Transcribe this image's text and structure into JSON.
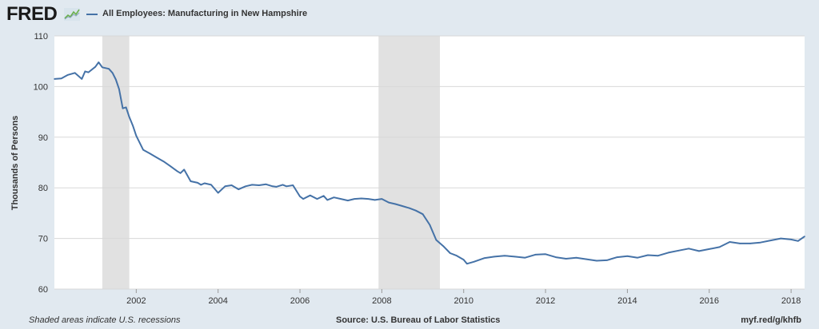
{
  "header": {
    "logo_text": "FRED",
    "legend_label": "All Employees: Manufacturing in New Hampshire",
    "series_color": "#4572a7"
  },
  "footer": {
    "note": "Shaded areas indicate U.S. recessions",
    "source": "Source: U.S. Bureau of Labor Statistics",
    "url": "myf.red/g/khfb"
  },
  "chart_data": {
    "type": "line",
    "title": "",
    "xlabel": "",
    "ylabel": "Thousands of Persons",
    "xlim": [
      2000.0,
      2018.33
    ],
    "ylim": [
      60,
      110
    ],
    "yticks": [
      60,
      70,
      80,
      90,
      100,
      110
    ],
    "xticks": [
      2002,
      2004,
      2006,
      2008,
      2010,
      2012,
      2014,
      2016,
      2018
    ],
    "grid": true,
    "recessions": [
      [
        2001.17,
        2001.83
      ],
      [
        2007.92,
        2009.42
      ]
    ],
    "series": [
      {
        "name": "All Employees: Manufacturing in New Hampshire",
        "color": "#4572a7",
        "x": [
          2000.0,
          2000.17,
          2000.33,
          2000.5,
          2000.67,
          2000.75,
          2000.83,
          2001.0,
          2001.08,
          2001.17,
          2001.33,
          2001.42,
          2001.5,
          2001.58,
          2001.67,
          2001.75,
          2001.83,
          2001.92,
          2002.0,
          2002.17,
          2002.33,
          2002.5,
          2002.67,
          2002.83,
          2003.0,
          2003.08,
          2003.17,
          2003.33,
          2003.5,
          2003.58,
          2003.67,
          2003.83,
          2004.0,
          2004.17,
          2004.33,
          2004.5,
          2004.67,
          2004.83,
          2005.0,
          2005.17,
          2005.33,
          2005.42,
          2005.5,
          2005.58,
          2005.67,
          2005.83,
          2006.0,
          2006.08,
          2006.25,
          2006.42,
          2006.58,
          2006.67,
          2006.83,
          2007.0,
          2007.17,
          2007.33,
          2007.5,
          2007.67,
          2007.83,
          2008.0,
          2008.17,
          2008.33,
          2008.5,
          2008.67,
          2008.83,
          2009.0,
          2009.17,
          2009.33,
          2009.5,
          2009.67,
          2009.83,
          2010.0,
          2010.08,
          2010.25,
          2010.5,
          2010.75,
          2011.0,
          2011.25,
          2011.5,
          2011.75,
          2012.0,
          2012.25,
          2012.5,
          2012.75,
          2013.0,
          2013.25,
          2013.5,
          2013.75,
          2014.0,
          2014.25,
          2014.5,
          2014.75,
          2015.0,
          2015.25,
          2015.5,
          2015.75,
          2016.0,
          2016.25,
          2016.5,
          2016.75,
          2017.0,
          2017.25,
          2017.5,
          2017.75,
          2018.0,
          2018.17,
          2018.33
        ],
        "y": [
          101.5,
          101.6,
          102.3,
          102.7,
          101.5,
          103.0,
          102.8,
          103.9,
          104.8,
          103.8,
          103.5,
          102.7,
          101.4,
          99.5,
          95.7,
          95.9,
          94.0,
          92.2,
          90.3,
          87.5,
          86.8,
          86.0,
          85.2,
          84.3,
          83.3,
          82.9,
          83.6,
          81.3,
          81.0,
          80.6,
          80.9,
          80.6,
          79.0,
          80.3,
          80.5,
          79.7,
          80.3,
          80.6,
          80.5,
          80.7,
          80.3,
          80.2,
          80.4,
          80.6,
          80.3,
          80.5,
          78.3,
          77.8,
          78.5,
          77.8,
          78.4,
          77.6,
          78.1,
          77.8,
          77.5,
          77.8,
          77.9,
          77.8,
          77.6,
          77.8,
          77.1,
          76.8,
          76.4,
          76.0,
          75.5,
          74.8,
          72.7,
          69.7,
          68.5,
          67.1,
          66.6,
          65.8,
          65.0,
          65.4,
          66.1,
          66.4,
          66.6,
          66.4,
          66.2,
          66.8,
          66.9,
          66.3,
          66.0,
          66.2,
          65.9,
          65.6,
          65.7,
          66.3,
          66.5,
          66.2,
          66.7,
          66.6,
          67.2,
          67.6,
          68.0,
          67.5,
          67.9,
          68.3,
          69.3,
          69.0,
          69.0,
          69.2,
          69.6,
          70.0,
          69.8,
          69.5,
          70.4
        ]
      }
    ]
  }
}
